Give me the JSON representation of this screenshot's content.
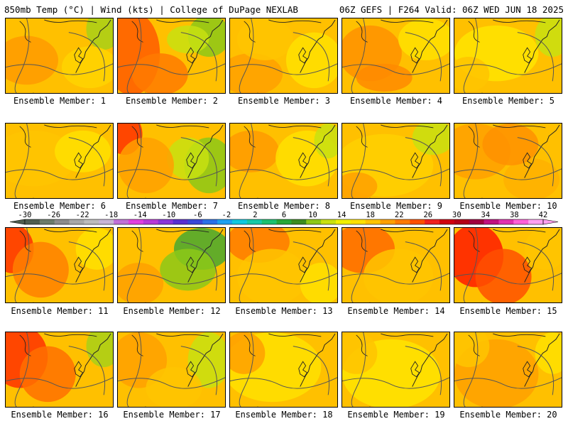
{
  "header": {
    "left": "850mb Temp (°C) | Wind (kts) | College of DuPage NEXLAB",
    "right": "06Z GEFS | F264 Valid: 06Z WED JUN 18 2025"
  },
  "colorbar": {
    "labels": [
      "-30",
      "-26",
      "-22",
      "-18",
      "-14",
      "-10",
      "-6",
      "-2",
      "2",
      "6",
      "10",
      "14",
      "18",
      "22",
      "26",
      "30",
      "34",
      "38",
      "42"
    ],
    "colors": [
      "#4e5e50",
      "#6b7b6b",
      "#8c8c8c",
      "#a8a8a8",
      "#bcbcbc",
      "#c8b4d6",
      "#c070d8",
      "#e040e0",
      "#b83ad8",
      "#8a36d8",
      "#5a30d0",
      "#3a48d8",
      "#2a70e8",
      "#1ea0f0",
      "#10c8e0",
      "#18c8a8",
      "#1cc070",
      "#28a838",
      "#3c8c20",
      "#8cc818",
      "#c8e010",
      "#f0f000",
      "#ffe000",
      "#ffc400",
      "#ffa000",
      "#ff7a00",
      "#ff5000",
      "#f02020",
      "#d00010",
      "#b40018",
      "#a00040",
      "#c01080",
      "#e030b0",
      "#ff60d8",
      "#ffa0f0"
    ]
  },
  "panels": [
    {
      "label": "Ensemble Member: 1"
    },
    {
      "label": "Ensemble Member: 2"
    },
    {
      "label": "Ensemble Member: 3"
    },
    {
      "label": "Ensemble Member: 4"
    },
    {
      "label": "Ensemble Member: 5"
    },
    {
      "label": "Ensemble Member: 6"
    },
    {
      "label": "Ensemble Member: 7"
    },
    {
      "label": "Ensemble Member: 8"
    },
    {
      "label": "Ensemble Member: 9"
    },
    {
      "label": "Ensemble Member: 10"
    },
    {
      "label": "Ensemble Member: 11"
    },
    {
      "label": "Ensemble Member: 12"
    },
    {
      "label": "Ensemble Member: 13"
    },
    {
      "label": "Ensemble Member: 14"
    },
    {
      "label": "Ensemble Member: 15"
    },
    {
      "label": "Ensemble Member: 16"
    },
    {
      "label": "Ensemble Member: 17"
    },
    {
      "label": "Ensemble Member: 18"
    },
    {
      "label": "Ensemble Member: 19"
    },
    {
      "label": "Ensemble Member: 20"
    }
  ]
}
